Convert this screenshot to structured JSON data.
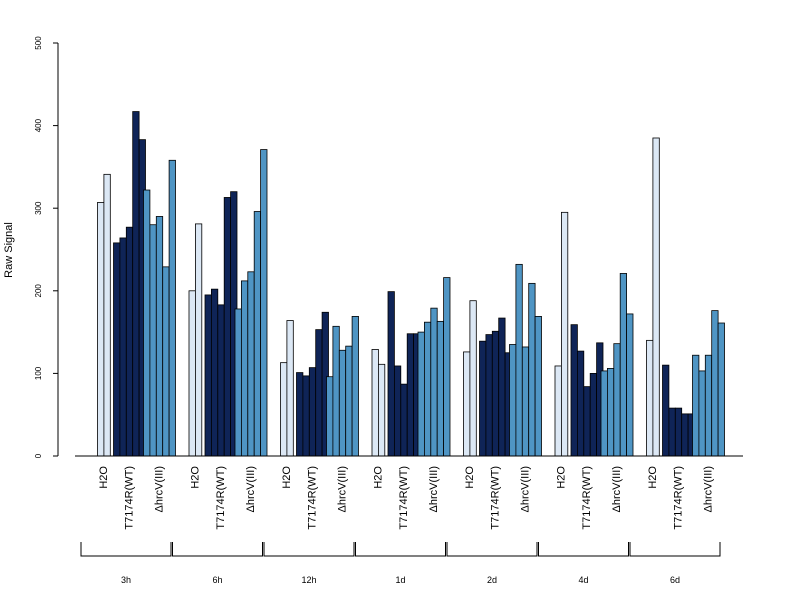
{
  "chart_data": {
    "type": "bar",
    "ylabel": "Raw Signal",
    "ylim": [
      0,
      500
    ],
    "yticks": [
      0,
      100,
      200,
      300,
      400,
      500
    ],
    "group_labels": [
      "H2O",
      "T7174R(WT)",
      "ΔhrcV(III)"
    ],
    "timepoints": [
      "3h",
      "6h",
      "12h",
      "1d",
      "2d",
      "4d",
      "6d"
    ],
    "colors": {
      "H2O": "#dce8f5",
      "T7174R(WT)": "#0f2457",
      "ΔhrcV(III)": "#4f95c4"
    },
    "series": [
      {
        "timepoint": "3h",
        "H2O": [
          307,
          341
        ],
        "T7174R(WT)": [
          258,
          264,
          277,
          417,
          383
        ],
        "ΔhrcV(III)": [
          322,
          280,
          290,
          229,
          358
        ]
      },
      {
        "timepoint": "6h",
        "H2O": [
          200,
          281
        ],
        "T7174R(WT)": [
          195,
          202,
          183,
          313,
          320
        ],
        "ΔhrcV(III)": [
          178,
          212,
          223,
          296,
          371
        ]
      },
      {
        "timepoint": "12h",
        "H2O": [
          113,
          164
        ],
        "T7174R(WT)": [
          101,
          97,
          107,
          153,
          174
        ],
        "ΔhrcV(III)": [
          96,
          157,
          128,
          133,
          169
        ]
      },
      {
        "timepoint": "1d",
        "H2O": [
          129,
          111
        ],
        "T7174R(WT)": [
          199,
          109,
          87,
          148,
          148
        ],
        "ΔhrcV(III)": [
          150,
          162,
          179,
          163,
          216
        ]
      },
      {
        "timepoint": "2d",
        "H2O": [
          126,
          188
        ],
        "T7174R(WT)": [
          139,
          147,
          151,
          167,
          125
        ],
        "ΔhrcV(III)": [
          135,
          232,
          132,
          209,
          169
        ]
      },
      {
        "timepoint": "4d",
        "H2O": [
          109,
          295
        ],
        "T7174R(WT)": [
          159,
          127,
          84,
          100,
          137
        ],
        "ΔhrcV(III)": [
          103,
          106,
          136,
          221,
          172
        ]
      },
      {
        "timepoint": "6d",
        "H2O": [
          140,
          385
        ],
        "T7174R(WT)": [
          110,
          58,
          58,
          51,
          51
        ],
        "ΔhrcV(III)": [
          122,
          103,
          122,
          176,
          161
        ]
      }
    ]
  }
}
